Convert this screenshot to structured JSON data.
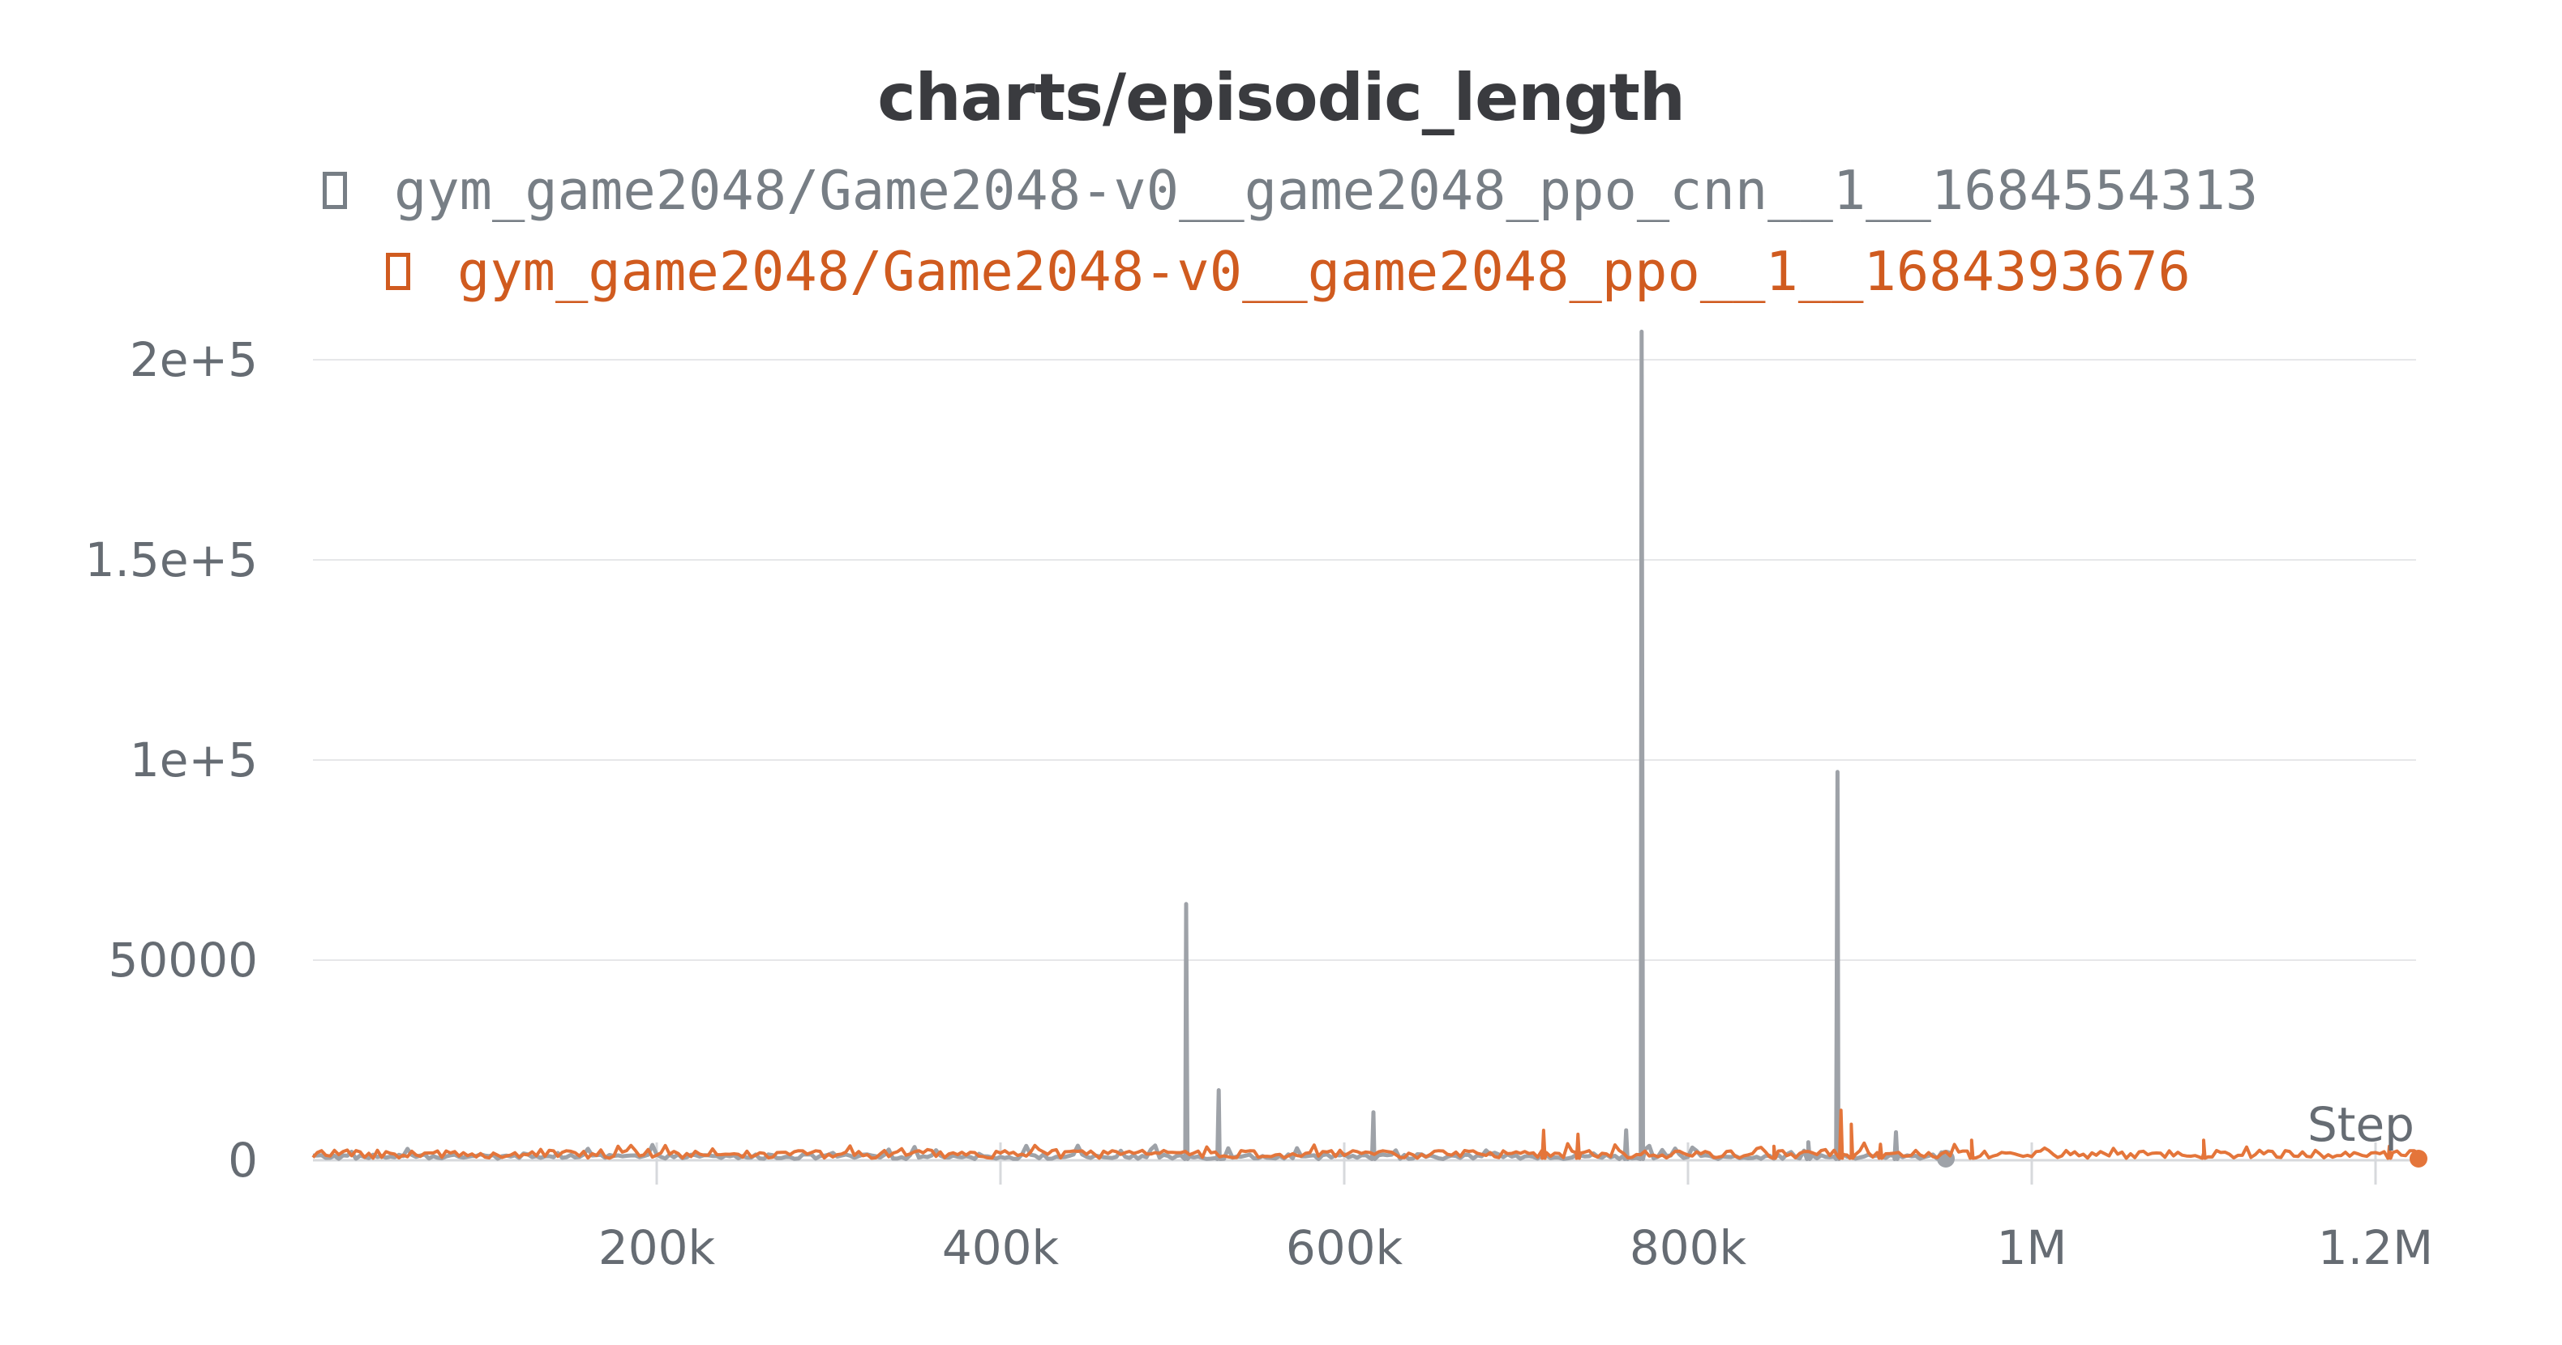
{
  "chart_data": {
    "type": "line",
    "title": "charts/episodic_length",
    "xlabel": "Step",
    "ylabel": "",
    "xlim": [
      0,
      1225000
    ],
    "ylim": [
      0,
      207000
    ],
    "x_ticks": [
      200000,
      400000,
      600000,
      800000,
      1000000,
      1200000
    ],
    "x_tick_labels": [
      "200k",
      "400k",
      "600k",
      "800k",
      "1M",
      "1.2M"
    ],
    "y_ticks": [
      0,
      50000,
      100000,
      150000,
      200000
    ],
    "y_tick_labels": [
      "0",
      "50000",
      "1e+5",
      "1.5e+5",
      "2e+5"
    ],
    "grid": true,
    "legend_position": "top",
    "series": [
      {
        "name": "gym_game2048/Game2048-v0__game2048_ppo_cnn__1__1684554313",
        "color": "#9ea2a8",
        "legend_color": "#777e85",
        "baseline": 300,
        "x_end": 950000,
        "spikes": [
          {
            "x": 508000,
            "y": 64000
          },
          {
            "x": 527000,
            "y": 17500
          },
          {
            "x": 617000,
            "y": 12000
          },
          {
            "x": 764000,
            "y": 7500
          },
          {
            "x": 773000,
            "y": 207000
          },
          {
            "x": 870000,
            "y": 4500
          },
          {
            "x": 887000,
            "y": 97000
          },
          {
            "x": 921000,
            "y": 7000
          }
        ]
      },
      {
        "name": "gym_game2048/Game2048-v0__game2048_ppo__1__1684393676",
        "color": "#e4753a",
        "legend_color": "#d05b1f",
        "baseline": 500,
        "x_end": 1225000,
        "spikes": [
          {
            "x": 716000,
            "y": 7500
          },
          {
            "x": 736000,
            "y": 6500
          },
          {
            "x": 850000,
            "y": 3500
          },
          {
            "x": 889000,
            "y": 12500
          },
          {
            "x": 895000,
            "y": 9000
          },
          {
            "x": 912000,
            "y": 4000
          },
          {
            "x": 965000,
            "y": 5000
          },
          {
            "x": 1100000,
            "y": 5000
          },
          {
            "x": 1208000,
            "y": 3500
          }
        ]
      }
    ]
  }
}
